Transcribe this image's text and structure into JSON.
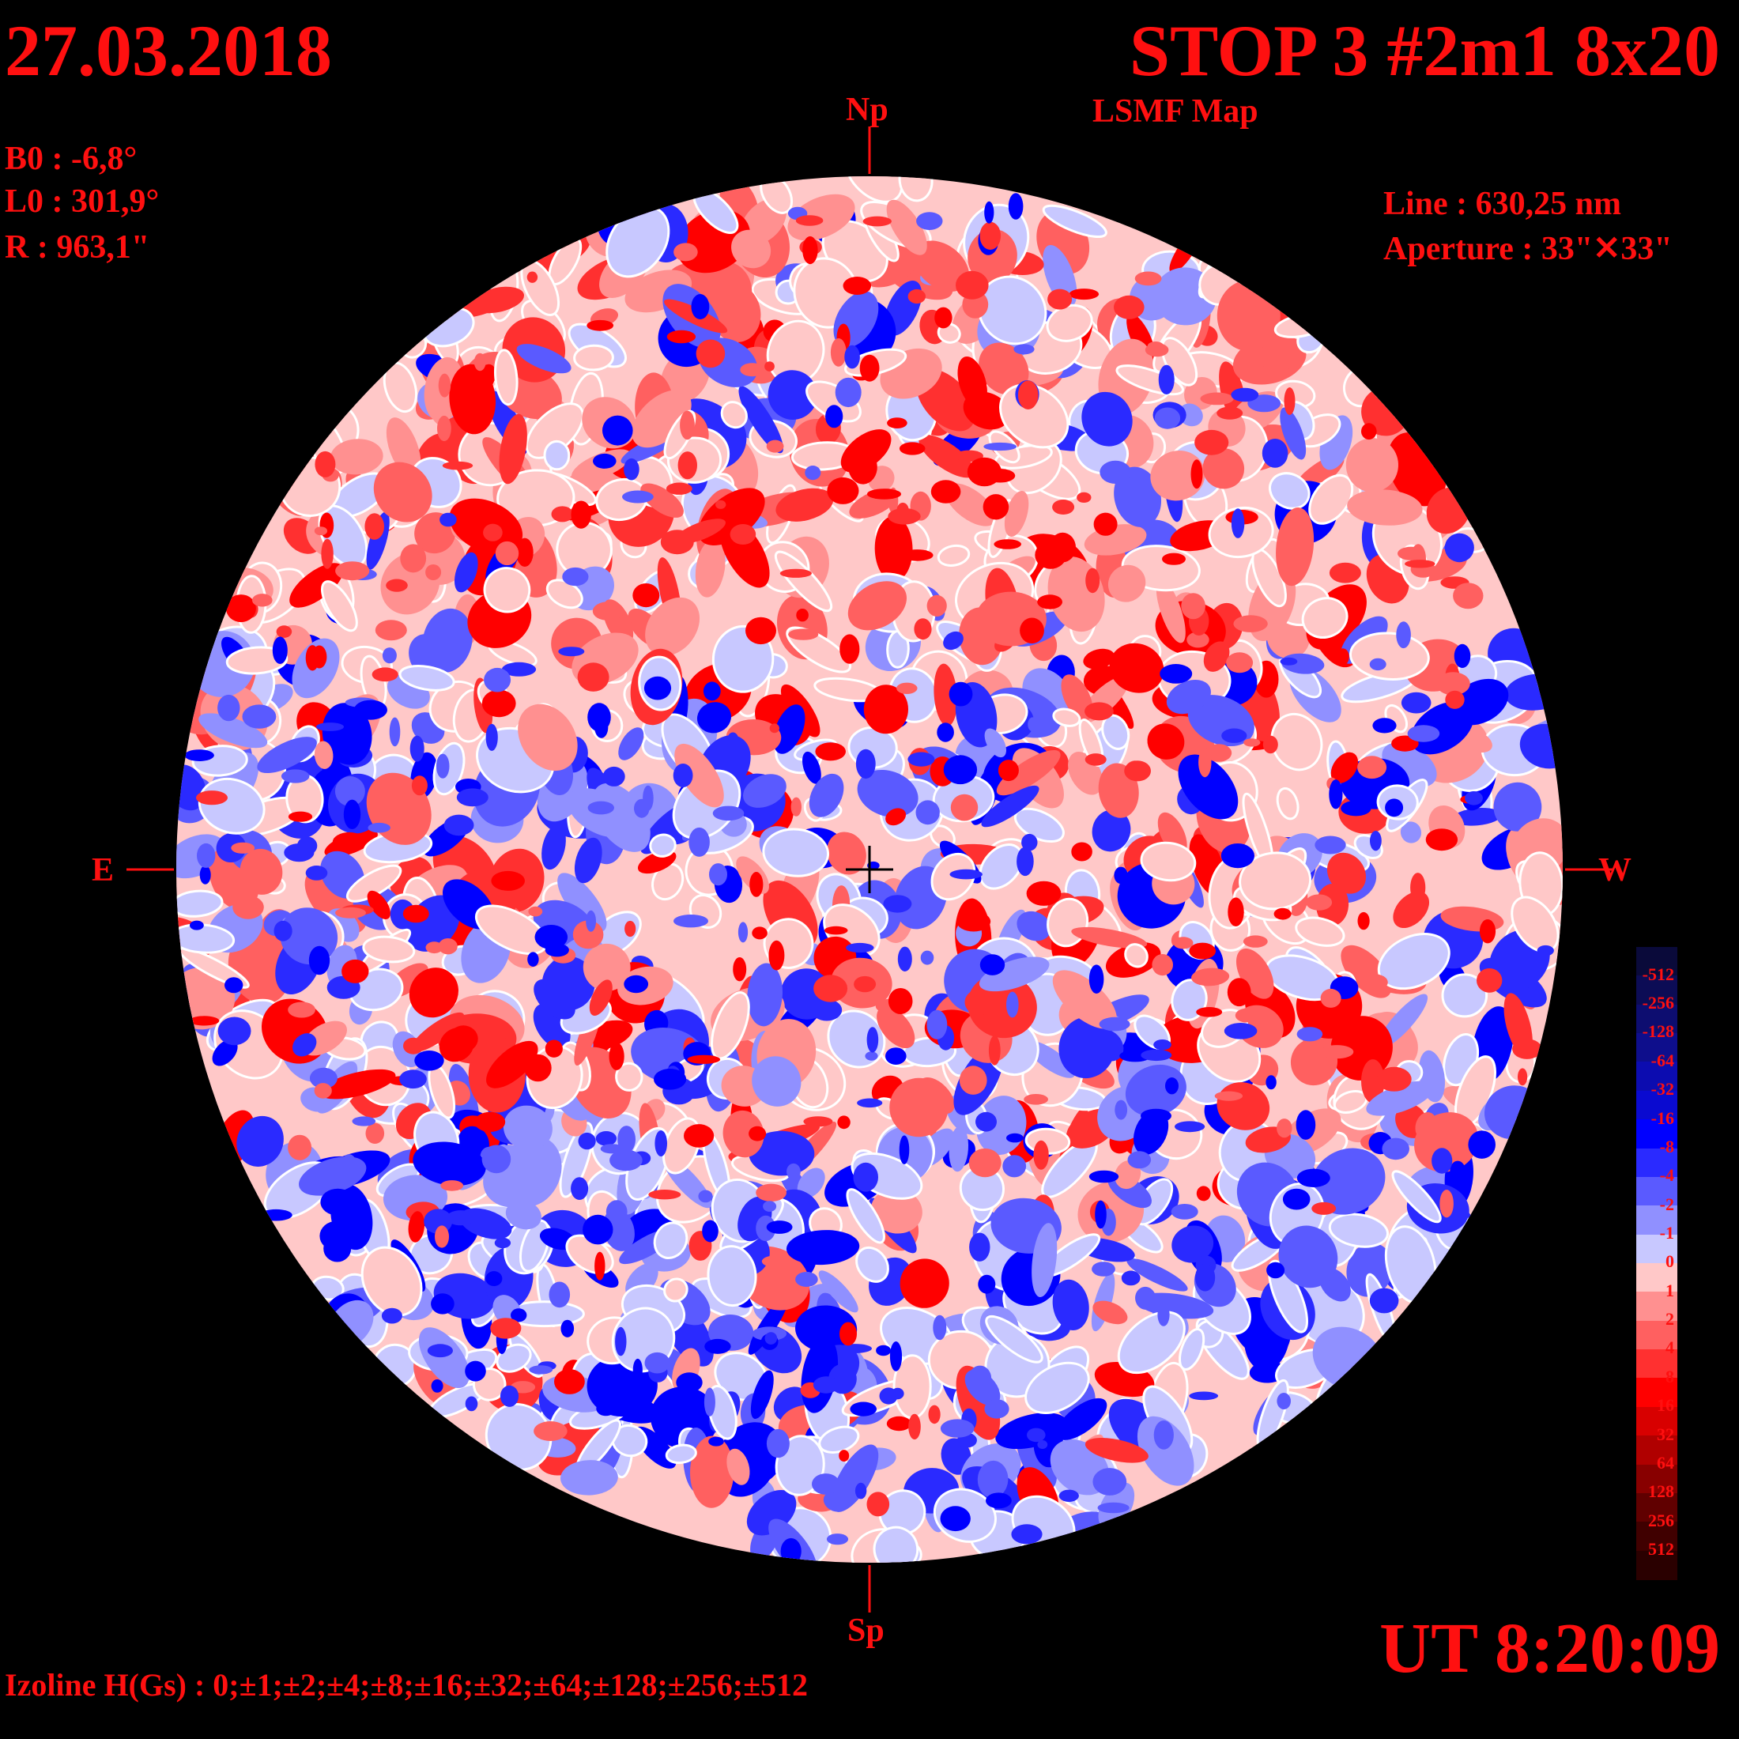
{
  "header": {
    "date": "27.03.2018",
    "title": "STOP 3 #2m1 8x20",
    "subtitle": "LSMF  Map"
  },
  "solar_params": {
    "b0": "B0 : -6,8°",
    "l0": "L0 : 301,9°",
    "r": "R  : 963,1\""
  },
  "instrument": {
    "line": "Line :  630,25 nm",
    "aperture": "Aperture : 33\"✕33\""
  },
  "compass": {
    "north": "Np",
    "south": "Sp",
    "east": "E",
    "west": "W"
  },
  "time": "UT 8:20:09",
  "isolines": "Izoline H(Gs) : 0;±1;±2;±4;±8;±16;±32;±64;±128;±256;±512",
  "colorbar": {
    "labels": [
      "-512",
      "-256",
      "-128",
      "-64",
      "-32",
      "-16",
      "-8",
      "-4",
      "-2",
      "-1",
      "0",
      "1",
      "2",
      "4",
      "8",
      "16",
      "32",
      "64",
      "128",
      "256",
      "512"
    ],
    "colors": [
      "#0a0a3a",
      "#0c0c55",
      "#0d0d70",
      "#0e0e8c",
      "#0c0cb0",
      "#0a0ad0",
      "#0000ff",
      "#2a2aff",
      "#5a5aff",
      "#9090ff",
      "#c8c8ff",
      "#ffc8c8",
      "#ff9090",
      "#ff6060",
      "#ff3030",
      "#ff0000",
      "#d80000",
      "#b00000",
      "#880000",
      "#600000",
      "#400000",
      "#2a0000"
    ]
  },
  "colors": {
    "label": "#ff1010",
    "background": "#000000",
    "isoline": "#ffffff"
  }
}
